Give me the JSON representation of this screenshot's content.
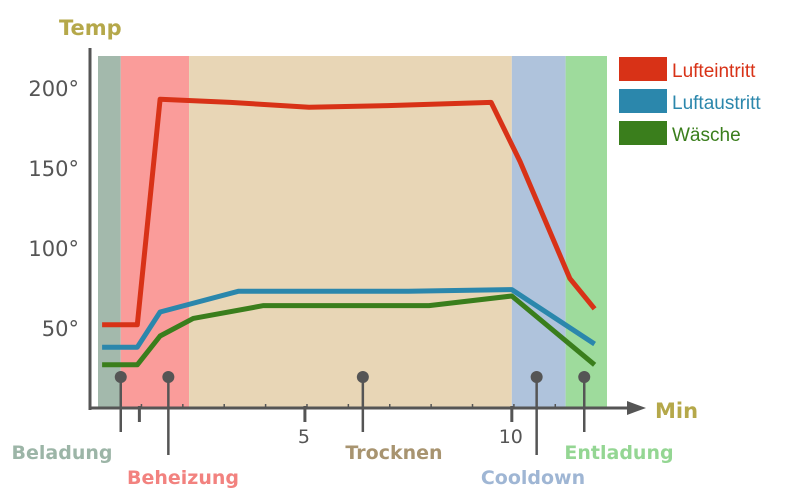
{
  "chart_data": {
    "type": "line",
    "ylabel": "Temp",
    "xlabel": "Min",
    "xlim": [
      0,
      12.3
    ],
    "ylim": [
      0,
      220
    ],
    "y_ticks": [
      {
        "value": 50,
        "label": "50°"
      },
      {
        "value": 100,
        "label": "100°"
      },
      {
        "value": 150,
        "label": "150°"
      },
      {
        "value": 200,
        "label": "200°"
      }
    ],
    "x_ticks": [
      {
        "value": 1,
        "label": ""
      },
      {
        "value": 5,
        "label": "5"
      },
      {
        "value": 10,
        "label": "10"
      }
    ],
    "x_minor_ticks": [
      1.05,
      2.05,
      3.05,
      4.05,
      5.05,
      6.05,
      7.05,
      8.05,
      9.05,
      10.05,
      11.05
    ],
    "phases": [
      {
        "name": "Beladung",
        "x_start": 0,
        "x_end": 0.55,
        "color": "#a3b9ac",
        "label_color": "#9cb5a7",
        "label_row": "top"
      },
      {
        "name": "Beheizung",
        "x_start": 0.55,
        "x_end": 2.2,
        "color": "#fa9c9a",
        "label_color": "#f2827f",
        "label_row": "bottom"
      },
      {
        "name": "Trocknen",
        "x_start": 2.2,
        "x_end": 10.0,
        "color": "#e8d6b6",
        "label_color": "#a89470",
        "label_row": "top"
      },
      {
        "name": "Cooldown",
        "x_start": 10.0,
        "x_end": 11.3,
        "color": "#afc3dc",
        "label_color": "#9fb6d4",
        "label_row": "bottom"
      },
      {
        "name": "Entladung",
        "x_start": 11.3,
        "x_end": 12.3,
        "color": "#9edb9c",
        "label_color": "#94d693",
        "label_row": "top"
      }
    ],
    "phase_markers": [
      0.55,
      1.7,
      6.4,
      10.6,
      11.75
    ],
    "series": [
      {
        "name": "Lufteintritt",
        "color": "#d83217",
        "x": [
          0.1,
          0.95,
          1.5,
          3.2,
          5.1,
          7.0,
          9.5,
          10.2,
          11.4,
          12.0
        ],
        "y": [
          52,
          52,
          193,
          191,
          188,
          189,
          191,
          154,
          81,
          62
        ]
      },
      {
        "name": "Luftaustritt",
        "color": "#2b87ac",
        "x": [
          0.1,
          0.95,
          1.5,
          3.4,
          5.1,
          7.5,
          10.0,
          12.0
        ],
        "y": [
          38,
          38,
          60,
          73,
          73,
          73,
          74,
          40
        ]
      },
      {
        "name": "Wäsche",
        "color": "#3a7e1c",
        "x": [
          0.1,
          0.95,
          1.5,
          2.3,
          4.0,
          6.0,
          8.0,
          10.0,
          12.0
        ],
        "y": [
          27,
          27,
          45,
          56,
          64,
          64,
          64,
          70,
          27
        ]
      }
    ],
    "axis_color": "#555555",
    "axis_title_color": "#b5a84a",
    "grid": false,
    "legend_position": "top-right"
  }
}
